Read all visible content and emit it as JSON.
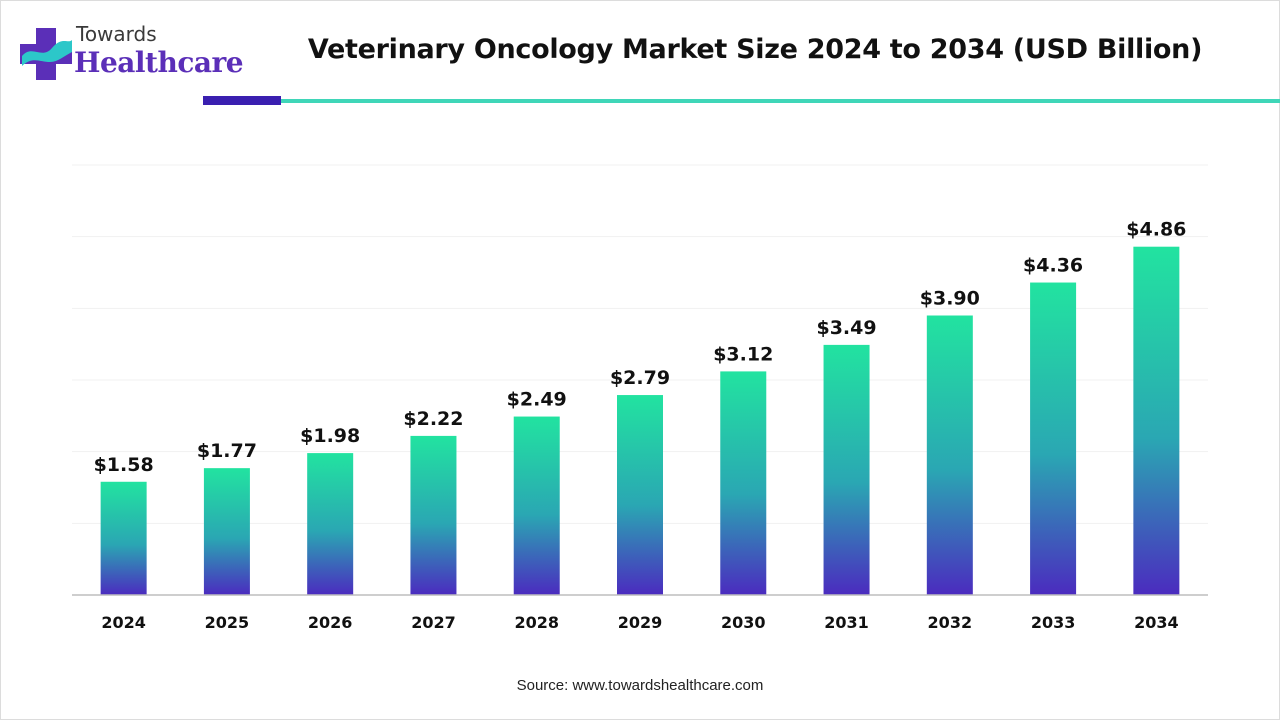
{
  "header": {
    "logo_top": "Towards",
    "logo_main": "Healthcare",
    "title": "Veterinary Oncology Market Size 2024 to 2034 (USD Billion)"
  },
  "footer": {
    "source": "Source: www.towardshealthcare.com"
  },
  "colors": {
    "bar_top": "#22e3a0",
    "bar_mid": "#2aa7b3",
    "bar_bottom": "#4b2bbf",
    "accent_dark": "#3a1fb0",
    "accent_light": "#3fd6b8",
    "logo_purple": "#5b2fb8",
    "logo_teal": "#2cc7c9"
  },
  "chart_data": {
    "type": "bar",
    "title": "Veterinary Oncology Market Size 2024 to 2034 (USD Billion)",
    "xlabel": "",
    "ylabel": "",
    "categories": [
      "2024",
      "2025",
      "2026",
      "2027",
      "2028",
      "2029",
      "2030",
      "2031",
      "2032",
      "2033",
      "2034"
    ],
    "values": [
      1.58,
      1.77,
      1.98,
      2.22,
      2.49,
      2.79,
      3.12,
      3.49,
      3.9,
      4.36,
      4.86
    ],
    "data_labels": [
      "$1.58",
      "$1.77",
      "$1.98",
      "$2.22",
      "$2.49",
      "$2.79",
      "$3.12",
      "$3.49",
      "$3.90",
      "$4.36",
      "$4.86"
    ],
    "ylim": [
      0,
      6
    ],
    "grid": true,
    "legend": "none"
  }
}
